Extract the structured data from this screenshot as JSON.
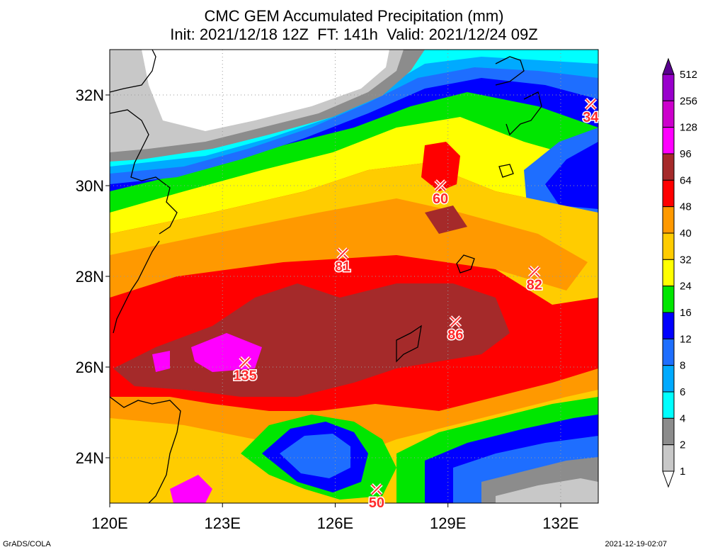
{
  "title_line1": "CMC GEM Accumulated Precipitation (mm)",
  "title_line2": "Init: 2021/12/18 12Z  FT: 141h  Valid: 2021/12/24 09Z",
  "footer_left": "GrADS/COLA",
  "footer_right": "2021-12-19-02:07",
  "map": {
    "lon_range": [
      120,
      133
    ],
    "lat_range": [
      23,
      33
    ],
    "lon_ticks": [
      "120E",
      "123E",
      "126E",
      "129E",
      "132E"
    ],
    "lat_ticks": [
      "24N",
      "26N",
      "28N",
      "30N",
      "32N"
    ],
    "grid": "dotted"
  },
  "colorbar": {
    "levels": [
      "1",
      "2",
      "4",
      "6",
      "8",
      "12",
      "16",
      "24",
      "32",
      "40",
      "48",
      "64",
      "96",
      "128",
      "256",
      "512"
    ],
    "colors": [
      "#ffffff",
      "#c8c8c8",
      "#8c8c8c",
      "#00ffff",
      "#00aaff",
      "#1e6eff",
      "#0000ff",
      "#00e600",
      "#ffff00",
      "#ffcc00",
      "#ff9900",
      "#ff0000",
      "#a52a2a",
      "#ff00ff",
      "#cc00cc",
      "#9900cc",
      "#5a0090"
    ]
  },
  "markers": [
    {
      "lon": 123.6,
      "lat": 26.1,
      "label": "135"
    },
    {
      "lon": 126.2,
      "lat": 28.5,
      "label": "81"
    },
    {
      "lon": 128.8,
      "lat": 30.0,
      "label": "60"
    },
    {
      "lon": 131.3,
      "lat": 28.1,
      "label": "82"
    },
    {
      "lon": 129.2,
      "lat": 27.0,
      "label": "86"
    },
    {
      "lon": 132.8,
      "lat": 31.8,
      "label": "34"
    },
    {
      "lon": 127.1,
      "lat": 23.3,
      "label": "50"
    }
  ]
}
